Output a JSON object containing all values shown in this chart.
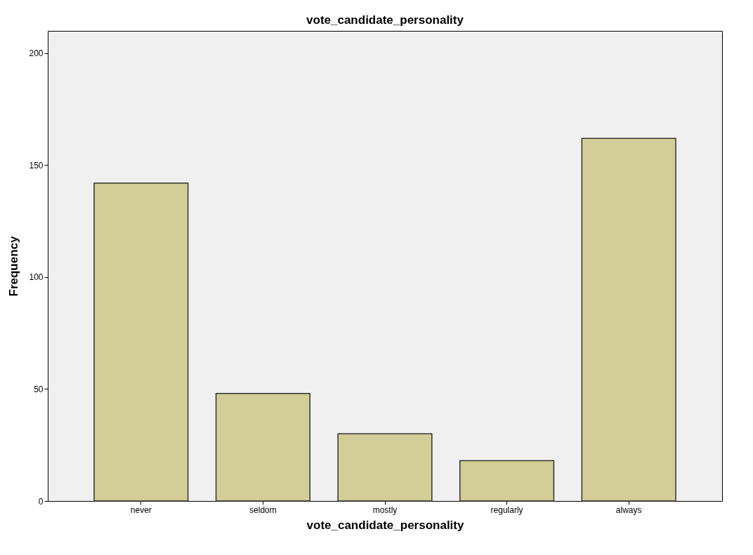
{
  "chart_data": {
    "type": "bar",
    "title": "vote_candidate_personality",
    "xlabel": "vote_candidate_personality",
    "ylabel": "Frequency",
    "categories": [
      "never",
      "seldom",
      "mostly",
      "regularly",
      "always"
    ],
    "values": [
      142,
      48,
      30,
      18,
      162
    ],
    "color": "#d3ce97",
    "ylim": [
      0,
      210
    ],
    "yticks": [
      0,
      50,
      100,
      150,
      200
    ],
    "grid": false
  }
}
